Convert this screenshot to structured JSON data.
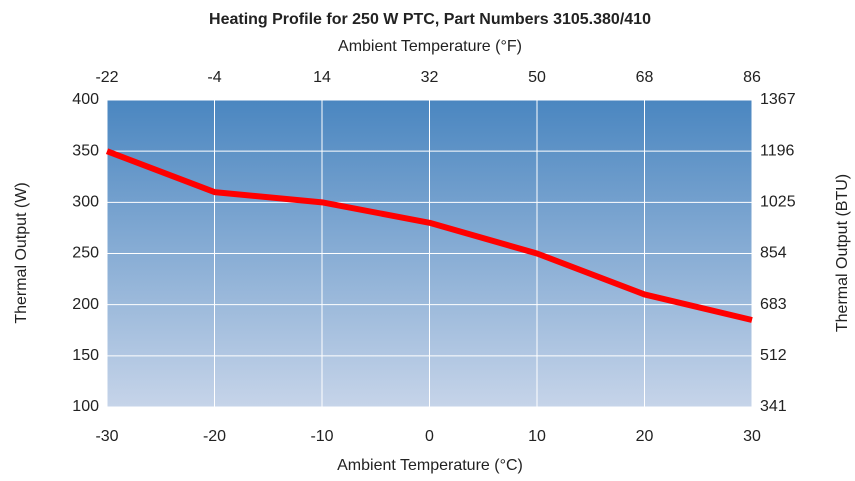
{
  "chart_data": {
    "type": "line",
    "title": "Heating Profile for 250 W PTC, Part Numbers 3105.380/410",
    "x_label": "Ambient Temperature (°C)",
    "x2_label": "Ambient Temperature (°F)",
    "y_label": "Thermal Output (W)",
    "y2_label": "Thermal Output (BTU)",
    "x": [
      -30,
      -20,
      -10,
      0,
      10,
      20,
      30
    ],
    "series": [
      {
        "name": "Thermal Output",
        "color": "#ff0000",
        "values": [
          350,
          310,
          300,
          280,
          250,
          210,
          185
        ]
      }
    ],
    "xlim": [
      -30,
      30
    ],
    "xticks": [
      -30,
      -20,
      -10,
      0,
      10,
      20,
      30
    ],
    "x2lim": [
      -22,
      86
    ],
    "x2ticks": [
      -22,
      -4,
      14,
      32,
      50,
      68,
      86
    ],
    "ylim": [
      100,
      400
    ],
    "yticks": [
      100,
      150,
      200,
      250,
      300,
      350,
      400
    ],
    "y2lim": [
      341,
      1367
    ],
    "y2ticks": [
      341,
      512,
      683,
      854,
      1025,
      1196,
      1367
    ],
    "grid": true
  }
}
